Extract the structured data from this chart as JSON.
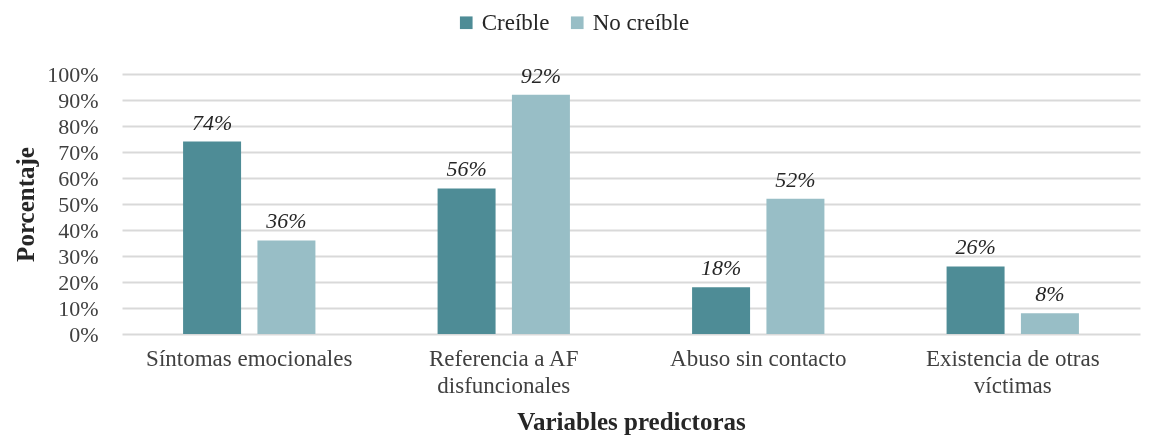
{
  "chart_data": {
    "type": "bar",
    "xlabel": "Variables predictoras",
    "ylabel": "Porcentaje",
    "categories": [
      "Síntomas emocionales",
      "Referencia a AF disfuncionales",
      "Abuso sin contacto",
      "Existencia de otras víctimas"
    ],
    "series": [
      {
        "name": "Creíble",
        "color": "#4e8c96",
        "values": [
          74,
          56,
          18,
          26
        ],
        "value_labels": [
          "74%",
          "56%",
          "18%",
          "26%"
        ]
      },
      {
        "name": "No creíble",
        "color": "#98bec6",
        "values": [
          36,
          92,
          52,
          8
        ],
        "value_labels": [
          "36%",
          "92%",
          "52%",
          "8%"
        ]
      }
    ],
    "ylim": [
      0,
      100
    ],
    "yticks": [
      {
        "value": 0,
        "label": "0%"
      },
      {
        "value": 10,
        "label": "10%"
      },
      {
        "value": 20,
        "label": "20%"
      },
      {
        "value": 30,
        "label": "30%"
      },
      {
        "value": 40,
        "label": "40%"
      },
      {
        "value": 50,
        "label": "50%"
      },
      {
        "value": 60,
        "label": "60%"
      },
      {
        "value": 70,
        "label": "70%"
      },
      {
        "value": 80,
        "label": "80%"
      },
      {
        "value": 90,
        "label": "90%"
      },
      {
        "value": 100,
        "label": "100%"
      }
    ],
    "grid": "y",
    "legend": "top"
  }
}
